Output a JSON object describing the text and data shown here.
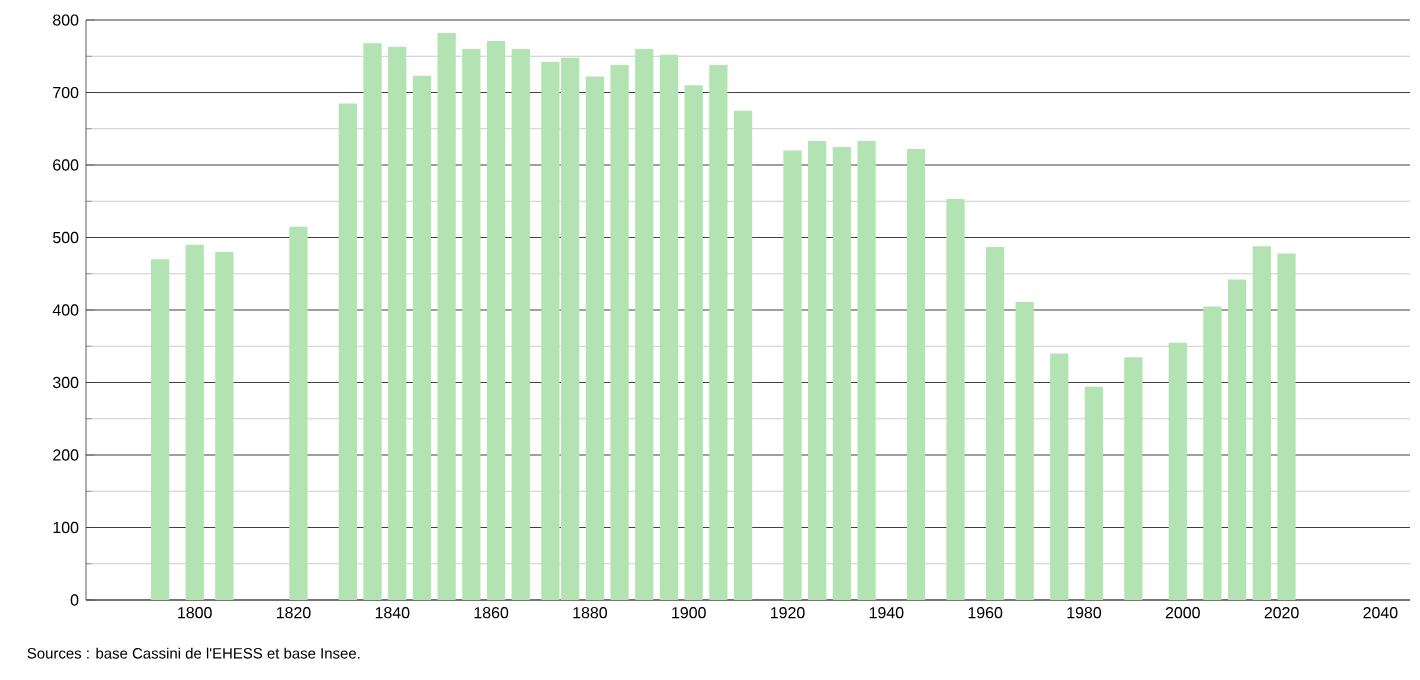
{
  "chart_data": {
    "type": "bar",
    "color": "#b3e3b3",
    "x": [
      1793,
      1800,
      1806,
      1821,
      1831,
      1836,
      1841,
      1846,
      1851,
      1856,
      1861,
      1866,
      1872,
      1876,
      1881,
      1886,
      1891,
      1896,
      1901,
      1906,
      1911,
      1921,
      1926,
      1931,
      1936,
      1946,
      1954,
      1962,
      1968,
      1975,
      1982,
      1990,
      1999,
      2006,
      2011,
      2016,
      2021
    ],
    "values": [
      470,
      490,
      480,
      515,
      685,
      768,
      763,
      723,
      782,
      760,
      771,
      760,
      742,
      748,
      722,
      738,
      760,
      752,
      710,
      738,
      675,
      620,
      633,
      625,
      633,
      622,
      553,
      487,
      411,
      340,
      294,
      335,
      355,
      405,
      442,
      488,
      478
    ],
    "xlim": [
      1778,
      2046
    ],
    "xticks": [
      1800,
      1820,
      1840,
      1860,
      1880,
      1900,
      1920,
      1940,
      1960,
      1980,
      2000,
      2020,
      2040
    ],
    "ylim": [
      0,
      800
    ],
    "yticks": [
      0,
      100,
      200,
      300,
      400,
      500,
      600,
      700,
      800
    ],
    "grid": "y",
    "annotations": [
      "Sources : base Cassini de l'EHESS et base Insee."
    ]
  }
}
